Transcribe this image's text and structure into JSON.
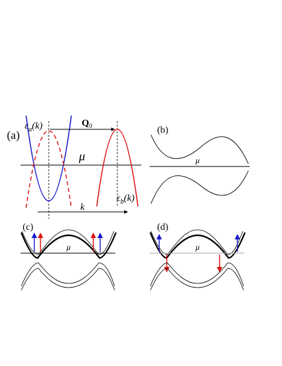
{
  "panel_a": {
    "label": "(a)",
    "eps_a": {
      "main": "ε",
      "sub": "a",
      "rest": "(k)"
    },
    "eps_b": {
      "main": "ε",
      "sub": "b",
      "rest": "(k)"
    },
    "q0": {
      "main": "Q",
      "sub": "0"
    },
    "mu": "μ",
    "k": "k"
  },
  "panel_b": {
    "label": "(b)",
    "mu": "μ"
  },
  "panel_c": {
    "label": "(c)",
    "mu": "μ"
  },
  "panel_d": {
    "label": "(d)",
    "mu": "μ"
  },
  "colors": {
    "band_a": "#1a1acc",
    "band_b": "#dd1111",
    "spin_up": "#1a1acc",
    "spin_red": "#dd1111",
    "mu_line_light": "#aaaaaa"
  }
}
